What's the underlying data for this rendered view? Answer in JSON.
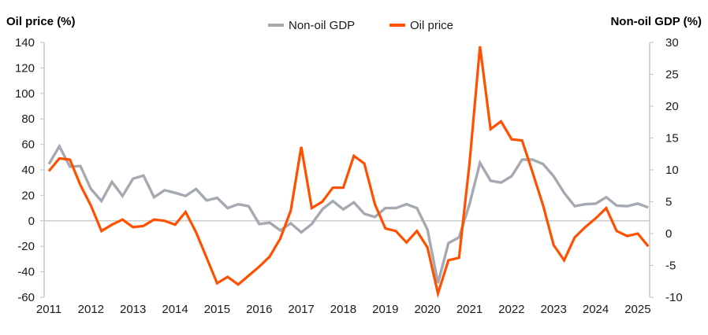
{
  "chart_data": {
    "type": "line",
    "title": "",
    "left_axis": {
      "label": "Oil price (%)",
      "ylim": [
        -60,
        140
      ],
      "ticks": [
        "140",
        "120",
        "100",
        "80",
        "60",
        "40",
        "20",
        "0",
        "-20",
        "-40",
        "-60"
      ],
      "tick_values": [
        140,
        120,
        100,
        80,
        60,
        40,
        20,
        0,
        -20,
        -40,
        -60
      ]
    },
    "right_axis": {
      "label": "Non-oil GDP (%)",
      "ylim": [
        -10,
        30
      ],
      "ticks": [
        "30",
        "25",
        "20",
        "15",
        "10",
        "5",
        "0",
        "-5",
        "-10"
      ],
      "tick_values": [
        30,
        25,
        20,
        15,
        10,
        5,
        0,
        -5,
        -10
      ]
    },
    "x_axis": {
      "label": "",
      "ticks": [
        "2011",
        "2012",
        "2013",
        "2014",
        "2015",
        "2016",
        "2017",
        "2018",
        "2019",
        "2020",
        "2021",
        "2022",
        "2023",
        "2024",
        "2025"
      ],
      "frequency": "quarterly",
      "start": "2011Q1",
      "end": "2025Q2"
    },
    "legend": {
      "position": "top-center",
      "entries": [
        "Non-oil GDP",
        "Oil price"
      ]
    },
    "grid": false,
    "zero_line": true,
    "series": [
      {
        "name": "Non-oil GDP",
        "axis": "right",
        "color": "#a5a9b2",
        "values": [
          10.9,
          13.7,
          10.5,
          10.6,
          7.0,
          5.1,
          8.1,
          5.9,
          8.6,
          9.1,
          5.7,
          6.8,
          6.4,
          5.9,
          7.0,
          5.2,
          5.6,
          4.0,
          4.6,
          4.3,
          1.5,
          1.7,
          0.5,
          1.6,
          0.2,
          1.5,
          3.8,
          5.1,
          3.8,
          4.9,
          3.1,
          2.6,
          4.0,
          4.0,
          4.6,
          4.0,
          0.6,
          -7.8,
          -1.5,
          -0.6,
          4.6,
          11.1,
          8.3,
          8.0,
          9.0,
          11.6,
          11.6,
          10.9,
          9.0,
          6.4,
          4.3,
          4.6,
          4.7,
          5.7,
          4.4,
          4.3,
          4.7,
          4.1
        ]
      },
      {
        "name": "Oil price",
        "axis": "left",
        "color": "#ff5000",
        "values": [
          39,
          49,
          48,
          28,
          12,
          -8,
          -3,
          1,
          -5,
          -4,
          1,
          0,
          -3,
          7,
          -9,
          -29,
          -49,
          -44,
          -50,
          -43,
          -36,
          -28,
          -14,
          8,
          58,
          10,
          15,
          26,
          26,
          51,
          45,
          13,
          -6,
          -8,
          -17,
          -8,
          -21,
          -57,
          -31,
          -29,
          45,
          137,
          72,
          78,
          64,
          63,
          38,
          12,
          -19,
          -31,
          -13,
          -5,
          2,
          10,
          -8,
          -12,
          -10,
          -20
        ]
      }
    ]
  }
}
